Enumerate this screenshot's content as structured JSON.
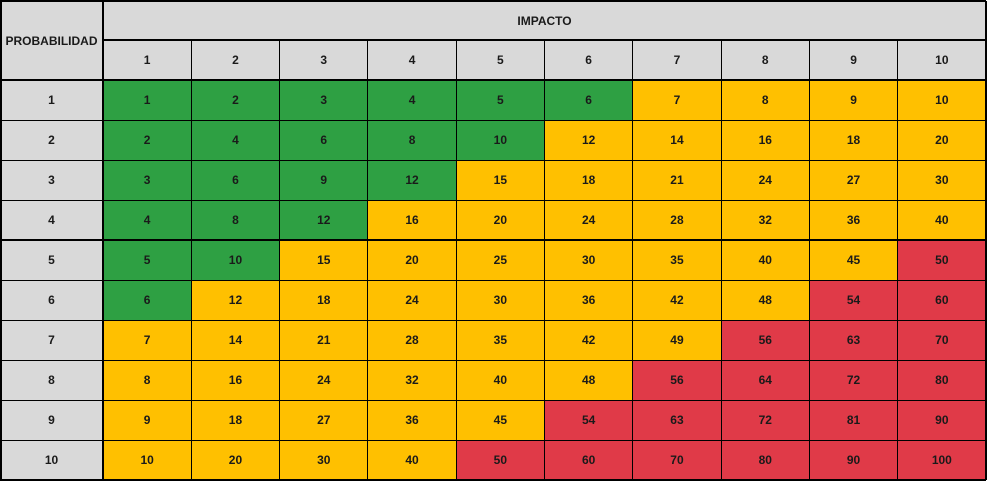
{
  "chart_data": {
    "type": "heatmap",
    "corner_label": "PROBABILIDAD",
    "column_group_label": "IMPACTO",
    "columns": [
      1,
      2,
      3,
      4,
      5,
      6,
      7,
      8,
      9,
      10
    ],
    "rows": [
      1,
      2,
      3,
      4,
      5,
      6,
      7,
      8,
      9,
      10
    ],
    "values": [
      [
        1,
        2,
        3,
        4,
        5,
        6,
        7,
        8,
        9,
        10
      ],
      [
        2,
        4,
        6,
        8,
        10,
        12,
        14,
        16,
        18,
        20
      ],
      [
        3,
        6,
        9,
        12,
        15,
        18,
        21,
        24,
        27,
        30
      ],
      [
        4,
        8,
        12,
        16,
        20,
        24,
        28,
        32,
        36,
        40
      ],
      [
        5,
        10,
        15,
        20,
        25,
        30,
        35,
        40,
        45,
        50
      ],
      [
        6,
        12,
        18,
        24,
        30,
        36,
        42,
        48,
        54,
        60
      ],
      [
        7,
        14,
        21,
        28,
        35,
        42,
        49,
        56,
        63,
        70
      ],
      [
        8,
        16,
        24,
        32,
        40,
        48,
        56,
        64,
        72,
        80
      ],
      [
        9,
        18,
        27,
        36,
        45,
        54,
        63,
        72,
        81,
        90
      ],
      [
        10,
        20,
        30,
        40,
        50,
        60,
        70,
        80,
        90,
        100
      ]
    ],
    "levels": [
      [
        "G",
        "G",
        "G",
        "G",
        "G",
        "G",
        "Y",
        "Y",
        "Y",
        "Y"
      ],
      [
        "G",
        "G",
        "G",
        "G",
        "G",
        "Y",
        "Y",
        "Y",
        "Y",
        "Y"
      ],
      [
        "G",
        "G",
        "G",
        "G",
        "Y",
        "Y",
        "Y",
        "Y",
        "Y",
        "Y"
      ],
      [
        "G",
        "G",
        "G",
        "Y",
        "Y",
        "Y",
        "Y",
        "Y",
        "Y",
        "Y"
      ],
      [
        "G",
        "G",
        "Y",
        "Y",
        "Y",
        "Y",
        "Y",
        "Y",
        "Y",
        "R"
      ],
      [
        "G",
        "Y",
        "Y",
        "Y",
        "Y",
        "Y",
        "Y",
        "Y",
        "R",
        "R"
      ],
      [
        "Y",
        "Y",
        "Y",
        "Y",
        "Y",
        "Y",
        "Y",
        "R",
        "R",
        "R"
      ],
      [
        "Y",
        "Y",
        "Y",
        "Y",
        "Y",
        "Y",
        "R",
        "R",
        "R",
        "R"
      ],
      [
        "Y",
        "Y",
        "Y",
        "Y",
        "Y",
        "R",
        "R",
        "R",
        "R",
        "R"
      ],
      [
        "Y",
        "Y",
        "Y",
        "Y",
        "R",
        "R",
        "R",
        "R",
        "R",
        "R"
      ]
    ],
    "colors": {
      "G": "#2ea043",
      "Y": "#ffc000",
      "R": "#e03a48",
      "header": "#d9d9d9",
      "grid": "#000000"
    }
  }
}
